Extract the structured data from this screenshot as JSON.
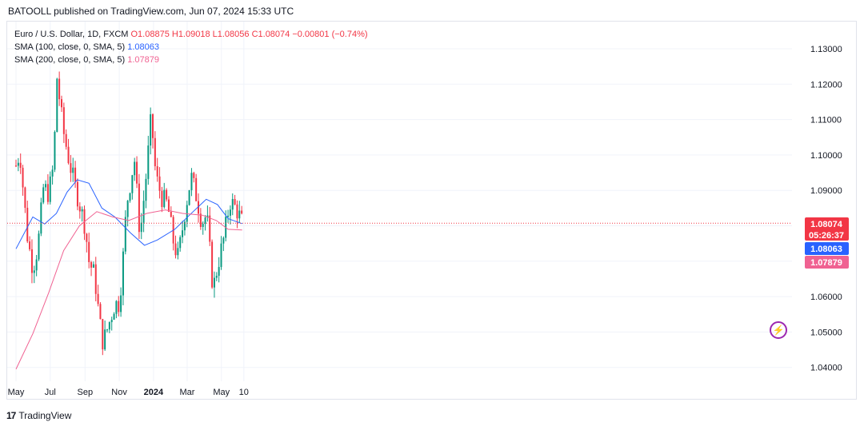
{
  "header": {
    "text": "BATOOLL published on TradingView.com, Jun 07, 2024 15:33 UTC"
  },
  "legend": {
    "symbol": "Euro / U.S. Dollar, 1D, FXCM",
    "ohlc": "O1.08875 H1.09018 L1.08056 C1.08074 −0.00801 (−0.74%)",
    "sma100_label": "SMA (100, close, 0, SMA, 5)",
    "sma100_value": "1.08063",
    "sma200_label": "SMA (200, close, 0, SMA, 5)",
    "sma200_value": "1.07879"
  },
  "price_tags": {
    "last": "1.08074",
    "countdown": "05:26:37",
    "sma100": "1.08063",
    "sma200": "1.07879"
  },
  "colors": {
    "up": "#089981",
    "down": "#f23645",
    "sma100": "#2962ff",
    "sma200": "#f06292",
    "grid": "#f0f3fa",
    "axis_text": "#131722"
  },
  "footer": {
    "brand": "TradingView",
    "logo": "17"
  },
  "icons": {
    "bolt": "lightning-icon"
  },
  "chart_data": {
    "type": "candlestick",
    "title": "Euro / U.S. Dollar, 1D, FXCM",
    "y_ticks": [
      "1.13000",
      "1.12000",
      "1.11000",
      "1.10000",
      "1.09000",
      "1.08000",
      "1.07000",
      "1.06000",
      "1.05000",
      "1.04000"
    ],
    "ylim": [
      1.0375,
      1.1345
    ],
    "x_ticks": [
      "May",
      "Jul",
      "Sep",
      "Nov",
      "2024",
      "Mar",
      "May",
      "10"
    ],
    "grid": true,
    "last_close": 1.08074,
    "price_path": [
      {
        "x": "2023-05-01",
        "y": 1.097
      },
      {
        "x": "2023-05-08",
        "y": 1.101
      },
      {
        "x": "2023-05-15",
        "y": 1.088
      },
      {
        "x": "2023-05-22",
        "y": 1.076
      },
      {
        "x": "2023-05-31",
        "y": 1.068
      },
      {
        "x": "2023-06-09",
        "y": 1.074
      },
      {
        "x": "2023-06-19",
        "y": 1.091
      },
      {
        "x": "2023-06-28",
        "y": 1.089
      },
      {
        "x": "2023-07-07",
        "y": 1.097
      },
      {
        "x": "2023-07-13",
        "y": 1.122
      },
      {
        "x": "2023-07-24",
        "y": 1.107
      },
      {
        "x": "2023-08-04",
        "y": 1.098
      },
      {
        "x": "2023-08-16",
        "y": 1.09
      },
      {
        "x": "2023-08-24",
        "y": 1.085
      },
      {
        "x": "2023-09-01",
        "y": 1.08
      },
      {
        "x": "2023-09-08",
        "y": 1.07
      },
      {
        "x": "2023-09-18",
        "y": 1.066
      },
      {
        "x": "2023-09-27",
        "y": 1.053
      },
      {
        "x": "2023-10-03",
        "y": 1.047
      },
      {
        "x": "2023-10-13",
        "y": 1.052
      },
      {
        "x": "2023-10-24",
        "y": 1.058
      },
      {
        "x": "2023-11-01",
        "y": 1.058
      },
      {
        "x": "2023-11-07",
        "y": 1.069
      },
      {
        "x": "2023-11-14",
        "y": 1.086
      },
      {
        "x": "2023-11-28",
        "y": 1.099
      },
      {
        "x": "2023-12-08",
        "y": 1.077
      },
      {
        "x": "2023-12-20",
        "y": 1.096
      },
      {
        "x": "2023-12-28",
        "y": 1.111
      },
      {
        "x": "2024-01-05",
        "y": 1.094
      },
      {
        "x": "2024-01-16",
        "y": 1.088
      },
      {
        "x": "2024-01-26",
        "y": 1.086
      },
      {
        "x": "2024-02-06",
        "y": 1.075
      },
      {
        "x": "2024-02-14",
        "y": 1.071
      },
      {
        "x": "2024-02-26",
        "y": 1.084
      },
      {
        "x": "2024-03-08",
        "y": 1.094
      },
      {
        "x": "2024-03-18",
        "y": 1.088
      },
      {
        "x": "2024-03-27",
        "y": 1.081
      },
      {
        "x": "2024-04-05",
        "y": 1.083
      },
      {
        "x": "2024-04-16",
        "y": 1.062
      },
      {
        "x": "2024-04-26",
        "y": 1.07
      },
      {
        "x": "2024-05-06",
        "y": 1.077
      },
      {
        "x": "2024-05-16",
        "y": 1.087
      },
      {
        "x": "2024-05-27",
        "y": 1.085
      },
      {
        "x": "2024-06-07",
        "y": 1.081
      }
    ],
    "series": [
      {
        "name": "SMA (100, close, 0, SMA, 5)",
        "color": "#2962ff",
        "points": [
          {
            "x": "2023-05-01",
            "y": 1.0735
          },
          {
            "x": "2023-05-31",
            "y": 1.0825
          },
          {
            "x": "2023-06-21",
            "y": 1.0805
          },
          {
            "x": "2023-07-12",
            "y": 1.0835
          },
          {
            "x": "2023-07-31",
            "y": 1.0895
          },
          {
            "x": "2023-08-18",
            "y": 1.093
          },
          {
            "x": "2023-09-08",
            "y": 1.092
          },
          {
            "x": "2023-10-01",
            "y": 1.085
          },
          {
            "x": "2023-10-24",
            "y": 1.0825
          },
          {
            "x": "2023-11-21",
            "y": 1.078
          },
          {
            "x": "2023-12-16",
            "y": 1.0745
          },
          {
            "x": "2024-01-08",
            "y": 1.076
          },
          {
            "x": "2024-02-08",
            "y": 1.079
          },
          {
            "x": "2024-03-05",
            "y": 1.083
          },
          {
            "x": "2024-04-04",
            "y": 1.0875
          },
          {
            "x": "2024-04-24",
            "y": 1.086
          },
          {
            "x": "2024-05-13",
            "y": 1.082
          },
          {
            "x": "2024-06-07",
            "y": 1.0806
          }
        ]
      },
      {
        "name": "SMA (200, close, 0, SMA, 5)",
        "color": "#f06292",
        "points": [
          {
            "x": "2023-05-01",
            "y": 1.0395
          },
          {
            "x": "2023-05-31",
            "y": 1.0495
          },
          {
            "x": "2023-06-28",
            "y": 1.061
          },
          {
            "x": "2023-07-25",
            "y": 1.073
          },
          {
            "x": "2023-08-22",
            "y": 1.08
          },
          {
            "x": "2023-09-22",
            "y": 1.084
          },
          {
            "x": "2023-10-20",
            "y": 1.0825
          },
          {
            "x": "2023-11-18",
            "y": 1.0815
          },
          {
            "x": "2023-12-20",
            "y": 1.0835
          },
          {
            "x": "2024-01-22",
            "y": 1.0845
          },
          {
            "x": "2024-02-22",
            "y": 1.0835
          },
          {
            "x": "2024-03-28",
            "y": 1.083
          },
          {
            "x": "2024-04-22",
            "y": 1.0815
          },
          {
            "x": "2024-05-13",
            "y": 1.079
          },
          {
            "x": "2024-06-07",
            "y": 1.0788
          }
        ]
      }
    ]
  }
}
